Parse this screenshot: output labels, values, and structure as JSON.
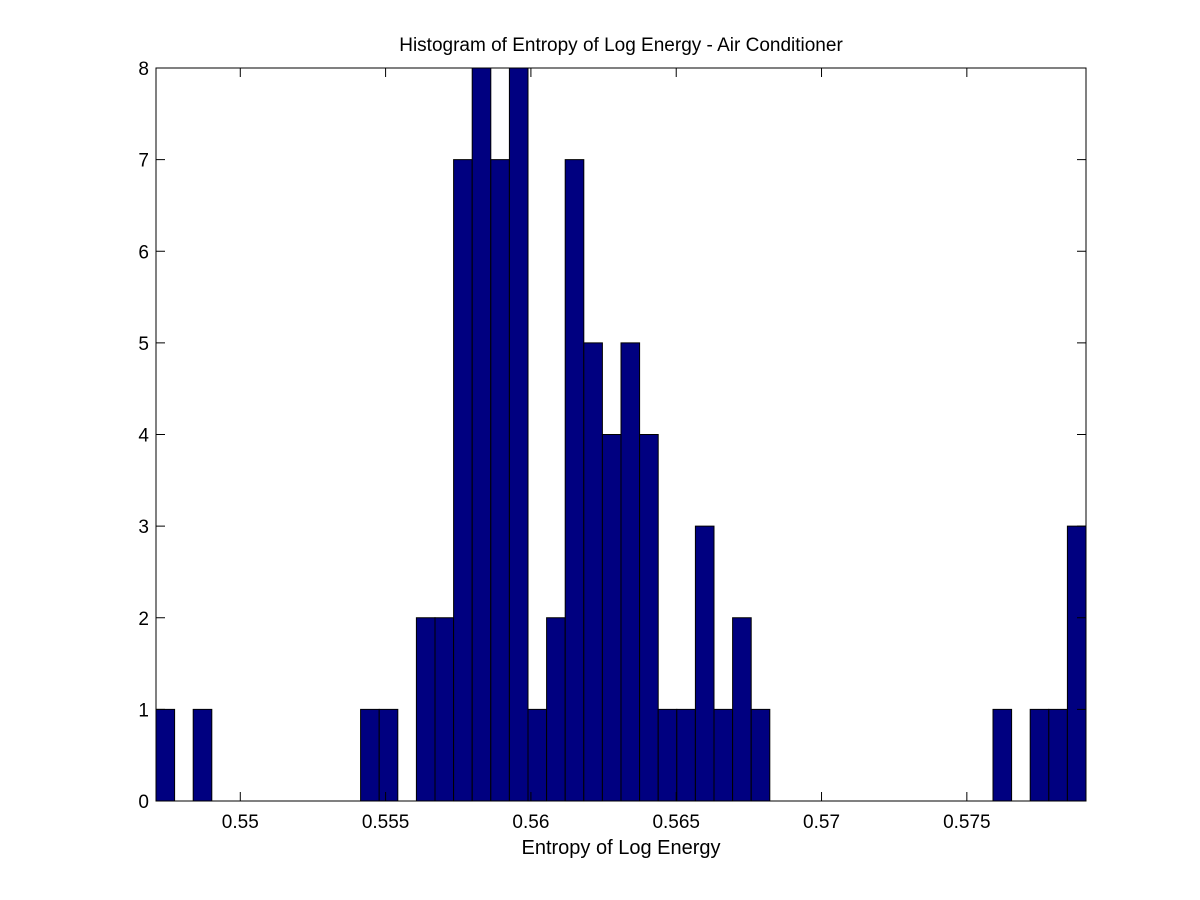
{
  "chart_data": {
    "type": "bar",
    "title": "Histogram of Entropy of Log Energy - Air Conditioner",
    "xlabel": "Entropy of Log Energy",
    "ylabel": "",
    "xlim": [
      0.5471,
      0.5791
    ],
    "ylim": [
      0,
      8
    ],
    "bin_width": 0.00064,
    "x": [
      0.54742,
      0.54806,
      0.5487,
      0.54934,
      0.54998,
      0.55062,
      0.55126,
      0.5519,
      0.55254,
      0.55318,
      0.55382,
      0.55446,
      0.5551,
      0.55574,
      0.55638,
      0.55702,
      0.55766,
      0.5583,
      0.55894,
      0.55958,
      0.56022,
      0.56086,
      0.5615,
      0.56214,
      0.56278,
      0.56342,
      0.56406,
      0.5647,
      0.56534,
      0.56598,
      0.56662,
      0.56726,
      0.5679,
      0.56854,
      0.56918,
      0.56982,
      0.57046,
      0.5711,
      0.57174,
      0.57238,
      0.57302,
      0.57366,
      0.5743,
      0.57494,
      0.57558,
      0.57622,
      0.57686,
      0.5775,
      0.57814,
      0.57878
    ],
    "values": [
      1,
      0,
      1,
      0,
      0,
      0,
      0,
      0,
      0,
      0,
      0,
      1,
      1,
      0,
      2,
      2,
      7,
      8,
      7,
      8,
      1,
      2,
      7,
      5,
      4,
      5,
      4,
      1,
      1,
      3,
      1,
      2,
      1,
      0,
      0,
      0,
      0,
      0,
      0,
      0,
      0,
      0,
      0,
      0,
      0,
      1,
      0,
      1,
      1,
      3
    ],
    "xticks": [
      "0.55",
      "0.555",
      "0.56",
      "0.565",
      "0.57",
      "0.575"
    ],
    "xtick_values": [
      0.55,
      0.555,
      0.56,
      0.565,
      0.57,
      0.575
    ],
    "yticks": [
      "0",
      "1",
      "2",
      "3",
      "4",
      "5",
      "6",
      "7",
      "8"
    ],
    "ytick_values": [
      0,
      1,
      2,
      3,
      4,
      5,
      6,
      7,
      8
    ],
    "grid": false,
    "bar_color": "#000080",
    "edge_color": "#000000"
  }
}
